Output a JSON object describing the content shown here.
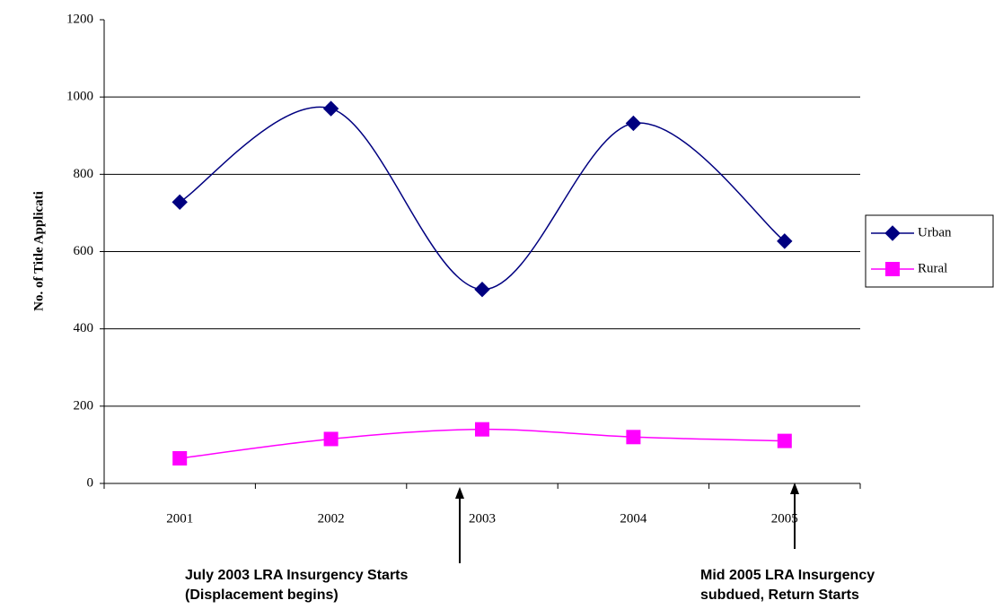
{
  "chart_data": {
    "type": "line",
    "y_label": "No. of Title Applicati",
    "categories": [
      "2001",
      "2002",
      "2003",
      "2004",
      "2005"
    ],
    "series": [
      {
        "name": "Urban",
        "color": "#000080",
        "marker": "diamond",
        "values": [
          728,
          970,
          502,
          932,
          627
        ]
      },
      {
        "name": "Rural",
        "color": "#ff00ff",
        "marker": "square",
        "values": [
          65,
          115,
          140,
          120,
          110
        ]
      }
    ],
    "ylim": [
      0,
      1200
    ],
    "yticks": [
      0,
      200,
      400,
      600,
      800,
      1000,
      1200
    ],
    "grid": true,
    "smooth": true,
    "legend": "right",
    "annotations": [
      {
        "lines": [
          "July 2003 LRA Insurgency Starts",
          "(Displacement begins)"
        ]
      },
      {
        "lines": [
          "Mid 2005 LRA Insurgency",
          "subdued, Return Starts"
        ]
      }
    ]
  }
}
